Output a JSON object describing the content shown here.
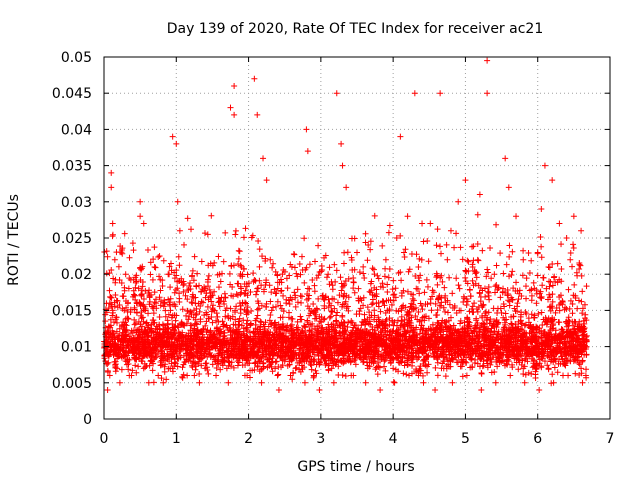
{
  "chart_data": {
    "type": "scatter",
    "title": "Day 139 of 2020, Rate Of TEC Index for receiver ac21",
    "xlabel": "GPS time / hours",
    "ylabel": "ROTI / TECUs",
    "xlim": [
      0,
      7
    ],
    "ylim": [
      0,
      0.05
    ],
    "xticks": [
      "0",
      "1",
      "2",
      "3",
      "4",
      "5",
      "6",
      "7"
    ],
    "yticks": [
      "0",
      "0.005",
      "0.01",
      "0.015",
      "0.02",
      "0.025",
      "0.03",
      "0.035",
      "0.04",
      "0.045",
      "0.05"
    ],
    "grid": true,
    "marker": "+",
    "color": "#ff0000",
    "series": [
      {
        "name": "ROTI",
        "x": [
          0.02,
          0.05,
          0.08,
          0.1,
          0.12,
          0.15,
          0.18,
          0.2,
          0.25,
          0.3,
          0.35,
          0.4,
          0.45,
          0.5,
          0.55,
          0.6,
          0.65,
          0.7,
          0.75,
          0.8,
          0.85,
          0.9,
          0.95,
          1.0,
          1.05,
          1.1,
          1.15,
          1.2,
          1.25,
          1.3,
          1.35,
          1.4,
          1.45,
          1.5,
          1.55,
          1.6,
          1.65,
          1.7,
          1.75,
          1.8,
          1.85,
          1.9,
          1.95,
          2.0,
          2.05,
          2.1,
          2.15,
          2.2,
          2.25,
          2.3,
          2.35,
          2.4,
          2.45,
          2.5,
          2.55,
          2.6,
          2.65,
          2.7,
          2.75,
          2.8,
          2.85,
          2.9,
          2.95,
          3.0,
          3.05,
          3.1,
          3.15,
          3.2,
          3.25,
          3.3,
          3.35,
          3.4,
          3.45,
          3.5,
          3.55,
          3.6,
          3.65,
          3.7,
          3.75,
          3.8,
          3.85,
          3.9,
          3.95,
          4.0,
          4.05,
          4.1,
          4.15,
          4.2,
          4.25,
          4.3,
          4.35,
          4.4,
          4.45,
          4.5,
          4.55,
          4.6,
          4.65,
          4.7,
          4.75,
          4.8,
          4.85,
          4.9,
          4.95,
          5.0,
          5.05,
          5.1,
          5.15,
          5.2,
          5.25,
          5.3,
          5.35,
          5.4,
          5.45,
          5.5,
          5.55,
          5.6,
          5.65,
          5.7,
          5.75,
          5.8,
          5.85,
          5.9,
          5.95,
          6.0,
          6.05,
          6.1,
          6.15,
          6.2,
          6.25,
          6.3,
          6.35,
          6.4,
          6.45,
          6.5,
          6.55,
          6.6,
          6.65,
          0.1,
          0.1,
          0.5,
          0.95,
          1.0,
          1.75,
          1.8,
          2.08,
          2.12,
          2.8,
          3.22,
          3.28,
          4.1,
          4.3,
          4.65,
          5.3,
          5.3,
          5.55,
          6.1,
          6.2,
          6.5,
          0.12,
          0.5,
          0.55,
          1.02,
          1.05,
          1.8,
          2.2,
          2.25,
          2.82,
          3.3,
          3.35,
          4.05,
          4.2,
          4.4,
          4.8,
          4.9,
          5.0,
          5.2,
          5.6,
          5.7,
          6.05,
          6.3,
          6.4,
          6.6,
          0.15,
          0.3,
          0.45,
          0.7,
          0.9,
          1.1,
          1.4,
          1.6,
          1.9,
          2.3,
          2.6,
          3.1,
          3.5,
          3.7,
          3.9,
          4.15,
          4.35,
          4.6,
          4.75,
          5.1,
          5.4,
          5.8,
          6.0,
          6.15,
          6.45,
          0.05,
          0.22,
          0.38,
          0.62,
          0.82,
          1.15,
          1.32,
          1.55,
          1.72,
          1.98,
          2.18,
          2.42,
          2.58,
          2.78,
          2.98,
          3.18,
          3.42,
          3.62,
          3.82,
          4.02,
          4.22,
          4.42,
          4.58,
          4.82,
          5.02,
          5.22,
          5.42,
          5.62,
          5.82,
          6.02,
          6.22,
          6.42,
          6.62,
          0.08,
          0.28,
          0.52,
          0.72,
          0.92,
          1.22,
          1.48,
          1.68,
          1.88,
          2.12,
          2.32,
          2.52,
          2.72,
          2.92,
          3.12,
          3.32,
          3.52,
          3.72,
          3.92,
          4.12,
          4.32,
          4.52,
          4.72,
          4.92,
          5.12,
          5.32,
          5.52,
          5.72,
          5.92,
          6.12,
          6.32,
          6.52
        ],
        "y": [
          0.008,
          0.012,
          0.006,
          0.01,
          0.015,
          0.009,
          0.007,
          0.011,
          0.013,
          0.008,
          0.006,
          0.01,
          0.012,
          0.009,
          0.007,
          0.011,
          0.008,
          0.01,
          0.006,
          0.009,
          0.012,
          0.008,
          0.007,
          0.011,
          0.01,
          0.013,
          0.009,
          0.008,
          0.006,
          0.01,
          0.012,
          0.007,
          0.009,
          0.011,
          0.008,
          0.01,
          0.013,
          0.007,
          0.009,
          0.012,
          0.008,
          0.01,
          0.006,
          0.011,
          0.009,
          0.013,
          0.008,
          0.007,
          0.01,
          0.012,
          0.009,
          0.006,
          0.011,
          0.008,
          0.01,
          0.013,
          0.007,
          0.009,
          0.012,
          0.008,
          0.01,
          0.006,
          0.011,
          0.009,
          0.008,
          0.012,
          0.007,
          0.01,
          0.009,
          0.013,
          0.008,
          0.011,
          0.006,
          0.01,
          0.012,
          0.009,
          0.007,
          0.011,
          0.008,
          0.013,
          0.01,
          0.009,
          0.012,
          0.007,
          0.011,
          0.008,
          0.01,
          0.013,
          0.009,
          0.012,
          0.006,
          0.011,
          0.008,
          0.01,
          0.013,
          0.009,
          0.012,
          0.007,
          0.011,
          0.014,
          0.009,
          0.012,
          0.008,
          0.01,
          0.013,
          0.011,
          0.009,
          0.012,
          0.008,
          0.014,
          0.01,
          0.012,
          0.009,
          0.011,
          0.013,
          0.008,
          0.01,
          0.012,
          0.009,
          0.007,
          0.011,
          0.013,
          0.008,
          0.01,
          0.009,
          0.012,
          0.007,
          0.011,
          0.008,
          0.01,
          0.006,
          0.012,
          0.009,
          0.008,
          0.011,
          0.007,
          0.01,
          0.034,
          0.032,
          0.03,
          0.039,
          0.038,
          0.043,
          0.046,
          0.047,
          0.042,
          0.04,
          0.045,
          0.038,
          0.039,
          0.045,
          0.045,
          0.0495,
          0.045,
          0.036,
          0.035,
          0.033,
          0.028,
          0.027,
          0.028,
          0.027,
          0.03,
          0.026,
          0.042,
          0.036,
          0.033,
          0.037,
          0.035,
          0.032,
          0.025,
          0.028,
          0.027,
          0.026,
          0.03,
          0.033,
          0.031,
          0.032,
          0.028,
          0.029,
          0.027,
          0.025,
          0.026,
          0.022,
          0.02,
          0.019,
          0.021,
          0.02,
          0.019,
          0.018,
          0.02,
          0.021,
          0.022,
          0.021,
          0.02,
          0.023,
          0.019,
          0.022,
          0.023,
          0.021,
          0.024,
          0.022,
          0.021,
          0.02,
          0.022,
          0.023,
          0.021,
          0.022,
          0.004,
          0.005,
          0.006,
          0.005,
          0.005,
          0.006,
          0.005,
          0.006,
          0.005,
          0.006,
          0.005,
          0.004,
          0.006,
          0.005,
          0.004,
          0.005,
          0.006,
          0.005,
          0.004,
          0.005,
          0.006,
          0.005,
          0.004,
          0.005,
          0.006,
          0.004,
          0.005,
          0.006,
          0.005,
          0.004,
          0.005,
          0.006,
          0.005,
          0.016,
          0.015,
          0.017,
          0.016,
          0.015,
          0.016,
          0.017,
          0.015,
          0.016,
          0.018,
          0.015,
          0.016,
          0.017,
          0.015,
          0.016,
          0.017,
          0.018,
          0.016,
          0.015,
          0.017,
          0.018,
          0.016,
          0.017,
          0.018,
          0.016,
          0.017,
          0.018,
          0.016,
          0.017,
          0.018,
          0.016,
          0.017
        ]
      }
    ]
  }
}
